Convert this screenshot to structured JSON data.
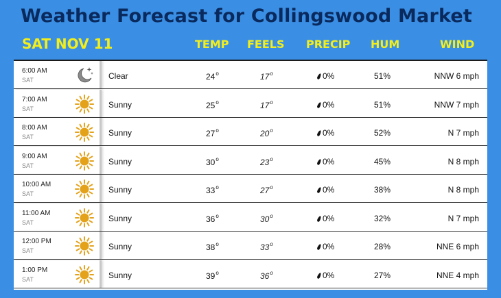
{
  "title": "Weather Forecast for Collingswood Market",
  "date": "SAT NOV 11",
  "headers": {
    "temp": "TEMP",
    "feels": "FEELS",
    "precip": "PRECIP",
    "hum": "HUM",
    "wind": "WIND"
  },
  "colors": {
    "background": "#3a8fe4",
    "title": "#0a2a5e",
    "header_yellow": "#f4ef1a",
    "sun": "#e3a21a",
    "moon": "#555555"
  },
  "rows": [
    {
      "time": "6:00 AM",
      "day": "SAT",
      "icon": "moon-stars-icon",
      "condition": "Clear",
      "temp": "24",
      "feels": "17",
      "precip": "0%",
      "humidity": "51%",
      "wind": "NNW 6 mph"
    },
    {
      "time": "7:00 AM",
      "day": "SAT",
      "icon": "sun-icon",
      "condition": "Sunny",
      "temp": "25",
      "feels": "17",
      "precip": "0%",
      "humidity": "51%",
      "wind": "NNW 7 mph"
    },
    {
      "time": "8:00 AM",
      "day": "SAT",
      "icon": "sun-icon",
      "condition": "Sunny",
      "temp": "27",
      "feels": "20",
      "precip": "0%",
      "humidity": "52%",
      "wind": "N 7 mph"
    },
    {
      "time": "9:00 AM",
      "day": "SAT",
      "icon": "sun-icon",
      "condition": "Sunny",
      "temp": "30",
      "feels": "23",
      "precip": "0%",
      "humidity": "45%",
      "wind": "N 8 mph"
    },
    {
      "time": "10:00 AM",
      "day": "SAT",
      "icon": "sun-icon",
      "condition": "Sunny",
      "temp": "33",
      "feels": "27",
      "precip": "0%",
      "humidity": "38%",
      "wind": "N 8 mph"
    },
    {
      "time": "11:00 AM",
      "day": "SAT",
      "icon": "sun-icon",
      "condition": "Sunny",
      "temp": "36",
      "feels": "30",
      "precip": "0%",
      "humidity": "32%",
      "wind": "N 7 mph"
    },
    {
      "time": "12:00 PM",
      "day": "SAT",
      "icon": "sun-icon",
      "condition": "Sunny",
      "temp": "38",
      "feels": "33",
      "precip": "0%",
      "humidity": "28%",
      "wind": "NNE 6 mph"
    },
    {
      "time": "1:00 PM",
      "day": "SAT",
      "icon": "sun-icon",
      "condition": "Sunny",
      "temp": "39",
      "feels": "36",
      "precip": "0%",
      "humidity": "27%",
      "wind": "NNE 4 mph"
    }
  ]
}
